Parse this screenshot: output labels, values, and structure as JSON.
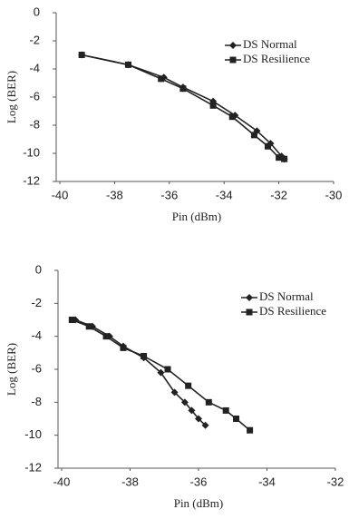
{
  "chart_data": [
    {
      "type": "line",
      "y_label": "Log (BER)",
      "x_label": "Pin (dBm)",
      "xlim": [
        -40,
        -30
      ],
      "xticks": [
        -40,
        -38,
        -36,
        -34,
        -32,
        -30
      ],
      "ylim": [
        -12,
        0
      ],
      "yticks": [
        0,
        -2,
        -4,
        -6,
        -8,
        -10,
        -12
      ],
      "legend": "upper right",
      "series": [
        {
          "name": "DS Normal",
          "color": "#222222",
          "marker": "diamond",
          "x": [
            -39.2,
            -37.5,
            -36.2,
            -35.5,
            -34.4,
            -33.6,
            -32.8,
            -32.3,
            -31.9,
            -31.8
          ],
          "values": [
            -3.0,
            -3.7,
            -4.6,
            -5.3,
            -6.3,
            -7.3,
            -8.4,
            -9.3,
            -10.2,
            -10.4
          ]
        },
        {
          "name": "DS Resilience",
          "color": "#222222",
          "marker": "square",
          "x": [
            -39.2,
            -37.5,
            -36.3,
            -35.5,
            -34.4,
            -33.7,
            -32.9,
            -32.4,
            -32.0,
            -31.8
          ],
          "values": [
            -3.0,
            -3.7,
            -4.7,
            -5.4,
            -6.6,
            -7.4,
            -8.7,
            -9.5,
            -10.3,
            -10.4
          ]
        }
      ]
    },
    {
      "type": "line",
      "y_label": "Log (BER)",
      "x_label": "Pin (dBm)",
      "xlim": [
        -40,
        -32
      ],
      "xticks": [
        -40,
        -38,
        -36,
        -34,
        -32
      ],
      "ylim": [
        -12,
        0
      ],
      "yticks": [
        0,
        -2,
        -4,
        -6,
        -8,
        -10,
        -12
      ],
      "legend": "upper right",
      "series": [
        {
          "name": "DS Normal",
          "color": "#222222",
          "marker": "diamond",
          "x": [
            -39.6,
            -39.1,
            -38.6,
            -38.2,
            -37.6,
            -37.1,
            -36.7,
            -36.4,
            -36.2,
            -36.0,
            -35.8
          ],
          "values": [
            -3.0,
            -3.4,
            -4.0,
            -4.6,
            -5.3,
            -6.2,
            -7.4,
            -8.0,
            -8.5,
            -9.0,
            -9.4
          ]
        },
        {
          "name": "DS Resilience",
          "color": "#222222",
          "marker": "square",
          "x": [
            -39.7,
            -39.2,
            -38.7,
            -38.2,
            -37.6,
            -36.9,
            -36.3,
            -35.7,
            -35.2,
            -34.9,
            -34.5
          ],
          "values": [
            -3.0,
            -3.4,
            -4.0,
            -4.7,
            -5.2,
            -6.0,
            -7.0,
            -8.0,
            -8.5,
            -9.0,
            -9.7
          ]
        }
      ]
    }
  ]
}
